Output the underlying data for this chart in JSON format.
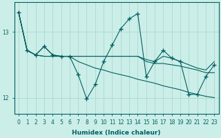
{
  "xlabel": "Humidex (Indice chaleur)",
  "bg_color": "#cceee8",
  "grid_color": "#aad8d2",
  "line_color": "#006060",
  "xlim": [
    -0.5,
    23.5
  ],
  "ylim": [
    11.75,
    13.45
  ],
  "yticks": [
    12,
    13
  ],
  "xticks": [
    0,
    1,
    2,
    3,
    4,
    5,
    6,
    7,
    8,
    9,
    10,
    11,
    12,
    13,
    14,
    15,
    16,
    17,
    18,
    19,
    20,
    21,
    22,
    23
  ],
  "series1": {
    "points": [
      [
        0,
        13.3
      ],
      [
        1,
        12.72
      ],
      [
        2,
        12.65
      ],
      [
        3,
        12.78
      ],
      [
        4,
        12.65
      ],
      [
        5,
        12.63
      ],
      [
        6,
        12.63
      ],
      [
        7,
        12.63
      ],
      [
        8,
        12.63
      ],
      [
        9,
        12.63
      ],
      [
        10,
        12.63
      ],
      [
        11,
        12.63
      ],
      [
        12,
        12.63
      ],
      [
        13,
        12.63
      ],
      [
        14,
        12.63
      ],
      [
        15,
        12.55
      ],
      [
        16,
        12.52
      ],
      [
        17,
        12.52
      ],
      [
        18,
        12.5
      ],
      [
        19,
        12.48
      ],
      [
        20,
        12.45
      ],
      [
        21,
        12.42
      ],
      [
        22,
        12.38
      ],
      [
        23,
        12.38
      ]
    ],
    "marker": false
  },
  "series2": {
    "points": [
      [
        0,
        13.3
      ],
      [
        1,
        12.72
      ],
      [
        2,
        12.65
      ],
      [
        3,
        12.63
      ],
      [
        4,
        12.63
      ],
      [
        5,
        12.63
      ],
      [
        6,
        12.63
      ],
      [
        7,
        12.55
      ],
      [
        8,
        12.5
      ],
      [
        9,
        12.45
      ],
      [
        10,
        12.42
      ],
      [
        11,
        12.38
      ],
      [
        12,
        12.35
      ],
      [
        13,
        12.32
      ],
      [
        14,
        12.28
      ],
      [
        15,
        12.25
      ],
      [
        16,
        12.22
      ],
      [
        17,
        12.18
      ],
      [
        18,
        12.15
      ],
      [
        19,
        12.12
      ],
      [
        20,
        12.08
      ],
      [
        21,
        12.05
      ],
      [
        22,
        12.02
      ],
      [
        23,
        12.0
      ]
    ],
    "marker": false
  },
  "series3": {
    "points": [
      [
        0,
        13.3
      ],
      [
        1,
        12.72
      ],
      [
        2,
        12.65
      ],
      [
        3,
        12.63
      ],
      [
        4,
        12.63
      ],
      [
        5,
        12.63
      ],
      [
        6,
        12.63
      ],
      [
        7,
        12.63
      ],
      [
        8,
        12.63
      ],
      [
        9,
        12.63
      ],
      [
        10,
        12.63
      ],
      [
        11,
        12.63
      ],
      [
        12,
        12.63
      ],
      [
        13,
        12.63
      ],
      [
        14,
        12.63
      ],
      [
        15,
        12.58
      ],
      [
        16,
        12.55
      ],
      [
        17,
        12.63
      ],
      [
        18,
        12.6
      ],
      [
        19,
        12.55
      ],
      [
        20,
        12.5
      ],
      [
        21,
        12.45
      ],
      [
        22,
        12.42
      ],
      [
        23,
        12.55
      ]
    ],
    "marker": false
  },
  "series4": {
    "points": [
      [
        0,
        13.3
      ],
      [
        1,
        12.72
      ],
      [
        2,
        12.65
      ],
      [
        3,
        12.78
      ],
      [
        4,
        12.65
      ],
      [
        5,
        12.63
      ],
      [
        6,
        12.63
      ],
      [
        7,
        12.35
      ],
      [
        8,
        11.98
      ],
      [
        9,
        12.2
      ],
      [
        10,
        12.55
      ],
      [
        11,
        12.8
      ],
      [
        12,
        13.05
      ],
      [
        13,
        13.2
      ],
      [
        14,
        13.28
      ],
      [
        15,
        12.32
      ],
      [
        16,
        12.55
      ],
      [
        17,
        12.72
      ],
      [
        18,
        12.6
      ],
      [
        19,
        12.55
      ],
      [
        20,
        12.05
      ],
      [
        21,
        12.05
      ],
      [
        22,
        12.32
      ],
      [
        23,
        12.5
      ]
    ],
    "marker": true
  }
}
